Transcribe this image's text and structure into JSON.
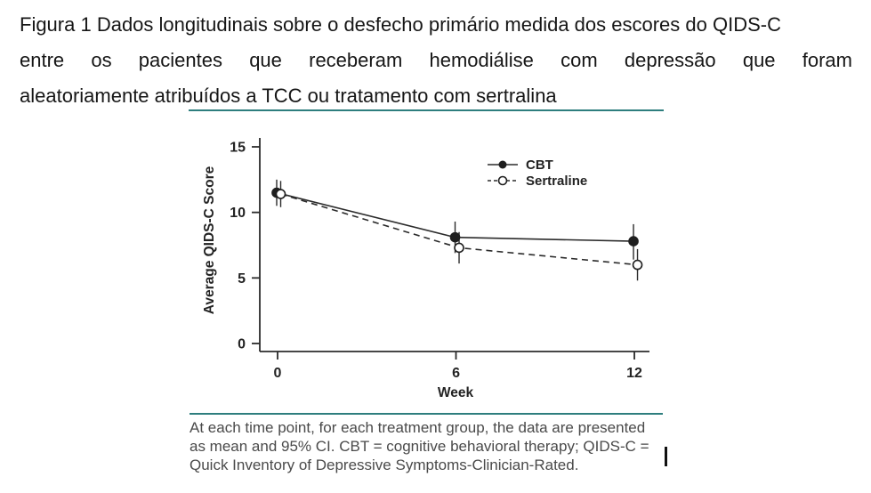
{
  "title": {
    "lines": [
      "Figura 1 Dados longitudinais sobre o desfecho primário medida dos escores do QIDS-C",
      "entre os pacientes que receberam hemodiálise com depressão que foram",
      "aleatoriamente atribuídos a TCC ou tratamento com sertralina"
    ]
  },
  "chart_data": {
    "type": "line",
    "title": "",
    "xlabel": "Week",
    "ylabel": "Average QIDS-C Score",
    "x": [
      0,
      6,
      12
    ],
    "xticks": [
      0,
      6,
      12
    ],
    "yticks": [
      15,
      10,
      5,
      0
    ],
    "ylim": [
      0,
      16
    ],
    "grid": false,
    "legend_position": "inside-upper-right",
    "error_bars": "95% CI, vertical lines without caps",
    "series": [
      {
        "name": "CBT",
        "line_style": "solid",
        "marker": "filled-circle",
        "values": [
          11.5,
          8.1,
          7.8
        ],
        "ci_low": [
          10.5,
          6.9,
          6.4
        ],
        "ci_high": [
          12.5,
          9.3,
          9.1
        ]
      },
      {
        "name": "Sertraline",
        "line_style": "dashed",
        "marker": "open-circle",
        "values": [
          11.4,
          7.3,
          6.0
        ],
        "ci_low": [
          10.4,
          6.1,
          4.8
        ],
        "ci_high": [
          12.4,
          8.5,
          7.2
        ]
      }
    ]
  },
  "footnote": {
    "lines": [
      "At each time point, for each treatment group, the data are presented",
      "as mean and 95% CI. CBT = cognitive behavioral therapy; QIDS-C =",
      "Quick Inventory of Depressive Symptoms-Clinician-Rated."
    ]
  },
  "colors": {
    "rule_teal": "#2e7e7e",
    "plot_ink": "#2b2b2b",
    "title_text": "#161616",
    "footnote_text": "#4a4a4a",
    "background": "#ffffff"
  }
}
